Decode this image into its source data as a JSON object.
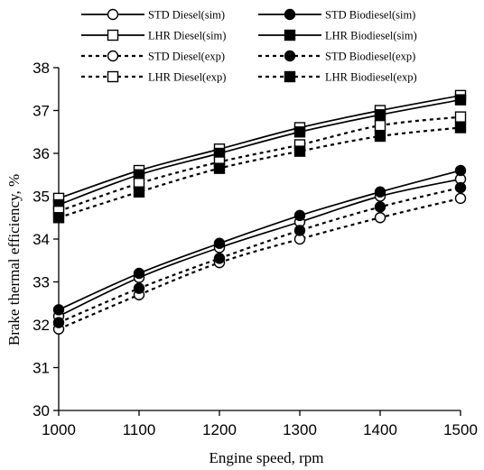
{
  "chart_data": {
    "type": "line",
    "xlabel": "Engine speed, rpm",
    "ylabel": "Brake thermal efficiency, %",
    "xlim": [
      1000,
      1500
    ],
    "ylim": [
      30,
      38
    ],
    "x": [
      1000,
      1100,
      1200,
      1300,
      1400,
      1500
    ],
    "x_ticks": [
      "1000",
      "1100",
      "1200",
      "1300",
      "1400",
      "1500"
    ],
    "y_ticks": [
      "30",
      "31",
      "32",
      "33",
      "34",
      "35",
      "36",
      "37",
      "38"
    ],
    "grid": false,
    "legend_position": "top",
    "series": [
      {
        "name": "STD Diesel(sim)",
        "values": [
          32.2,
          33.1,
          33.8,
          34.4,
          35.0,
          35.4
        ],
        "line": "solid",
        "marker": "circle-open"
      },
      {
        "name": "STD Biodiesel(sim)",
        "values": [
          32.35,
          33.2,
          33.9,
          34.55,
          35.1,
          35.6
        ],
        "line": "solid",
        "marker": "circle-filled"
      },
      {
        "name": "LHR Diesel(sim)",
        "values": [
          34.95,
          35.6,
          36.1,
          36.6,
          37.0,
          37.35
        ],
        "line": "solid",
        "marker": "square-open"
      },
      {
        "name": "LHR Biodiesel(sim)",
        "values": [
          34.8,
          35.5,
          36.0,
          36.5,
          36.9,
          37.25
        ],
        "line": "solid",
        "marker": "square-filled"
      },
      {
        "name": "STD Diesel(exp)",
        "values": [
          31.9,
          32.7,
          33.45,
          34.0,
          34.5,
          34.95
        ],
        "line": "dotted",
        "marker": "circle-open"
      },
      {
        "name": "STD Biodiesel(exp)",
        "values": [
          32.05,
          32.85,
          33.55,
          34.2,
          34.75,
          35.2
        ],
        "line": "dotted",
        "marker": "circle-filled"
      },
      {
        "name": "LHR Diesel(exp)",
        "values": [
          34.65,
          35.3,
          35.8,
          36.2,
          36.65,
          36.85
        ],
        "line": "dotted",
        "marker": "square-open"
      },
      {
        "name": "LHR Biodiesel(exp)",
        "values": [
          34.5,
          35.1,
          35.65,
          36.05,
          36.4,
          36.6
        ],
        "line": "dotted",
        "marker": "square-filled"
      }
    ]
  }
}
